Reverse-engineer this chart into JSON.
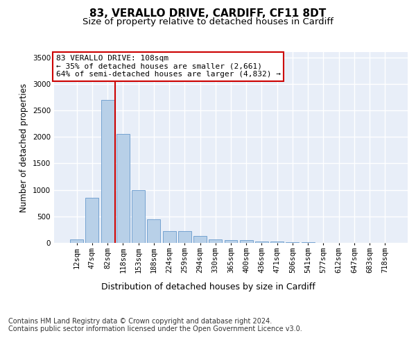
{
  "title": "83, VERALLO DRIVE, CARDIFF, CF11 8DT",
  "subtitle": "Size of property relative to detached houses in Cardiff",
  "xlabel": "Distribution of detached houses by size in Cardiff",
  "ylabel": "Number of detached properties",
  "categories": [
    "12sqm",
    "47sqm",
    "82sqm",
    "118sqm",
    "153sqm",
    "188sqm",
    "224sqm",
    "259sqm",
    "294sqm",
    "330sqm",
    "365sqm",
    "400sqm",
    "436sqm",
    "471sqm",
    "506sqm",
    "541sqm",
    "577sqm",
    "612sqm",
    "647sqm",
    "683sqm",
    "718sqm"
  ],
  "values": [
    60,
    850,
    2700,
    2050,
    1000,
    450,
    220,
    220,
    130,
    70,
    55,
    55,
    30,
    25,
    15,
    10,
    5,
    5,
    2,
    2,
    2
  ],
  "bar_color": "#b8d0e8",
  "bar_edge_color": "#6699cc",
  "background_color": "#e8eef8",
  "grid_color": "#ffffff",
  "annotation_text": "83 VERALLO DRIVE: 108sqm\n← 35% of detached houses are smaller (2,661)\n64% of semi-detached houses are larger (4,832) →",
  "vline_color": "#cc0000",
  "box_color": "#cc0000",
  "ylim": [
    0,
    3600
  ],
  "yticks": [
    0,
    500,
    1000,
    1500,
    2000,
    2500,
    3000,
    3500
  ],
  "footer_text": "Contains HM Land Registry data © Crown copyright and database right 2024.\nContains public sector information licensed under the Open Government Licence v3.0.",
  "title_fontsize": 11,
  "subtitle_fontsize": 9.5,
  "xlabel_fontsize": 9,
  "ylabel_fontsize": 8.5,
  "tick_fontsize": 7.5,
  "footer_fontsize": 7,
  "annot_fontsize": 8
}
